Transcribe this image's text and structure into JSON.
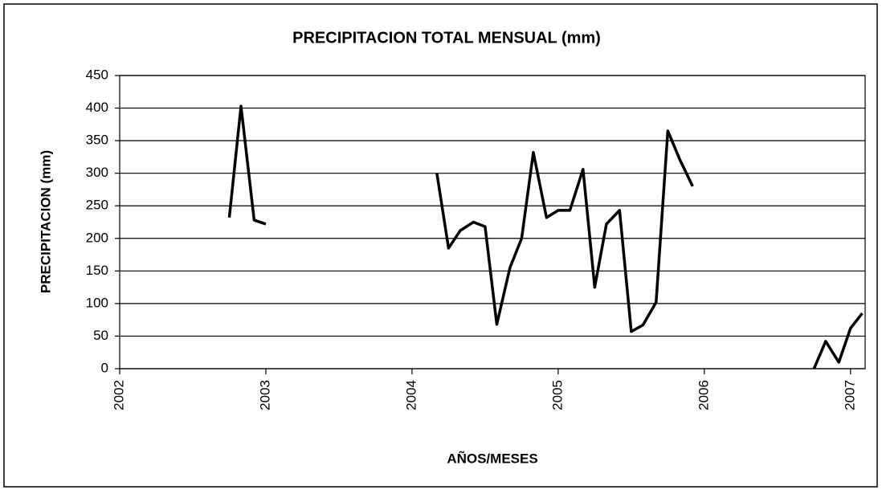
{
  "chart_data": {
    "type": "line",
    "title": "PRECIPITACION TOTAL MENSUAL (mm)",
    "x_label": "AÑOS/MESES",
    "y_label": "PRECIPITACION (mm)",
    "x": [
      2002.75,
      2002.83,
      2002.92,
      2003.0,
      2003.08,
      2003.17,
      2003.25,
      2003.33,
      2003.42,
      2003.5,
      2003.58,
      2003.67,
      2003.75,
      2003.83,
      2003.92,
      2004.0,
      2004.08,
      2004.17,
      2004.25,
      2004.33,
      2004.42,
      2004.5,
      2004.58,
      2004.67,
      2004.75,
      2004.83,
      2004.92,
      2005.0,
      2005.08,
      2005.17,
      2005.25,
      2005.33,
      2005.42,
      2005.5,
      2005.58,
      2005.67,
      2005.75,
      2005.83,
      2005.92,
      2006.0,
      2006.08,
      2006.17,
      2006.25,
      2006.33,
      2006.42,
      2006.5,
      2006.58,
      2006.67,
      2006.75,
      2006.83,
      2006.92,
      2007.0,
      2007.08
    ],
    "values": [
      232,
      403,
      228,
      222,
      null,
      null,
      null,
      null,
      null,
      null,
      null,
      null,
      null,
      null,
      null,
      null,
      null,
      300,
      185,
      212,
      225,
      218,
      68,
      155,
      200,
      332,
      232,
      243,
      243,
      306,
      125,
      222,
      243,
      57,
      67,
      102,
      365,
      322,
      280,
      null,
      null,
      null,
      null,
      null,
      null,
      null,
      null,
      null,
      0,
      42,
      10,
      62,
      85
    ],
    "color": "#000000",
    "xlim": [
      2002,
      2007.1
    ],
    "xticks": [
      2002,
      2003,
      2004,
      2005,
      2006,
      2007
    ],
    "ylim": [
      0,
      450
    ],
    "yticks": [
      0,
      50,
      100,
      150,
      200,
      250,
      300,
      350,
      400,
      450
    ],
    "grid": true
  }
}
